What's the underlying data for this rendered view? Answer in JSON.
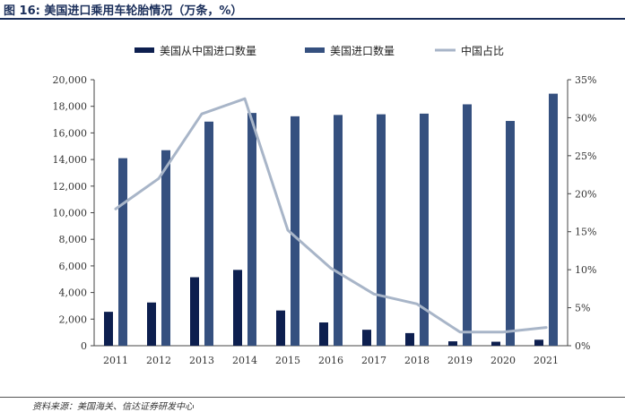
{
  "figure": {
    "title": "图 16:  美国进口乘用车轮胎情况（万条，%）",
    "source": "资料来源：美国海关、信达证券研发中心"
  },
  "colors": {
    "series_china": "#0d1f4f",
    "series_total": "#35507f",
    "series_share": "#a8b5c8",
    "axis": "#444444"
  },
  "chart_data": {
    "type": "bar",
    "categories": [
      "2011",
      "2012",
      "2013",
      "2014",
      "2015",
      "2016",
      "2017",
      "2018",
      "2019",
      "2020",
      "2021"
    ],
    "series": [
      {
        "name": "美国从中国进口数量",
        "type": "bar",
        "axis": "left",
        "values": [
          2550,
          3250,
          5150,
          5700,
          2650,
          1750,
          1200,
          950,
          330,
          300,
          450
        ]
      },
      {
        "name": "美国进口数量",
        "type": "bar",
        "axis": "left",
        "values": [
          14100,
          14700,
          16850,
          17500,
          17250,
          17350,
          17400,
          17450,
          18150,
          16900,
          18950
        ]
      },
      {
        "name": "中国占比",
        "type": "line",
        "axis": "right",
        "values": [
          18.0,
          22.0,
          30.5,
          32.5,
          15.2,
          10.2,
          6.8,
          5.5,
          1.8,
          1.8,
          2.4
        ]
      }
    ],
    "y_left": {
      "min": 0,
      "max": 20000,
      "ticks": [
        0,
        2000,
        4000,
        6000,
        8000,
        10000,
        12000,
        14000,
        16000,
        18000,
        20000
      ],
      "tick_labels": [
        "0",
        "2,000",
        "4,000",
        "6,000",
        "8,000",
        "10,000",
        "12,000",
        "14,000",
        "16,000",
        "18,000",
        "20,000"
      ]
    },
    "y_right": {
      "min": 0,
      "max": 35,
      "ticks": [
        0,
        5,
        10,
        15,
        20,
        25,
        30,
        35
      ],
      "tick_labels": [
        "0%",
        "5%",
        "10%",
        "15%",
        "20%",
        "25%",
        "30%",
        "35%"
      ]
    },
    "grid": false,
    "legend": "top-center"
  }
}
